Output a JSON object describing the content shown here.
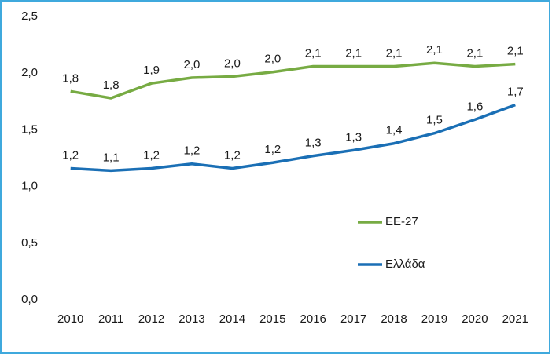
{
  "chart_data": {
    "type": "line",
    "categories": [
      "2010",
      "2011",
      "2012",
      "2013",
      "2014",
      "2015",
      "2016",
      "2017",
      "2018",
      "2019",
      "2020",
      "2021"
    ],
    "series": [
      {
        "name": "ΕΕ-27",
        "color": "#77ab43",
        "values": [
          1.84,
          1.78,
          1.91,
          1.96,
          1.97,
          2.01,
          2.06,
          2.06,
          2.06,
          2.09,
          2.06,
          2.08
        ],
        "value_labels": [
          "1,8",
          "1,8",
          "1,9",
          "2,0",
          "2,0",
          "2,0",
          "2,1",
          "2,1",
          "2,1",
          "2,1",
          "2,1",
          "2,1"
        ]
      },
      {
        "name": "Ελλάδα",
        "color": "#1a6fb5",
        "values": [
          1.16,
          1.14,
          1.16,
          1.2,
          1.16,
          1.21,
          1.27,
          1.32,
          1.38,
          1.47,
          1.59,
          1.72
        ],
        "value_labels": [
          "1,2",
          "1,1",
          "1,2",
          "1,2",
          "1,2",
          "1,2",
          "1,3",
          "1,3",
          "1,4",
          "1,5",
          "1,6",
          "1,7"
        ]
      }
    ],
    "ylim": [
      0,
      2.5
    ],
    "yticks": [
      {
        "value": 0,
        "label": "0,0"
      },
      {
        "value": 0.5,
        "label": "0,5"
      },
      {
        "value": 1,
        "label": "1,0"
      },
      {
        "value": 1.5,
        "label": "1,5"
      },
      {
        "value": 2,
        "label": "2,0"
      },
      {
        "value": 2.5,
        "label": "2,5"
      }
    ],
    "grid": false,
    "legend": "right"
  }
}
